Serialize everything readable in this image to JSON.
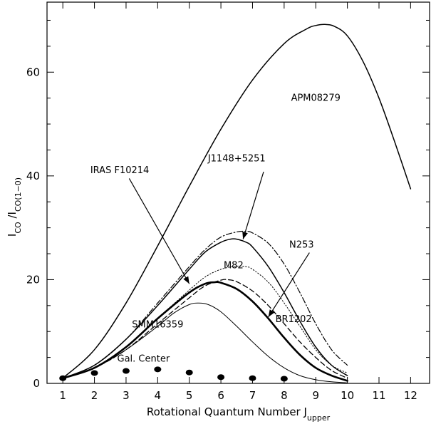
{
  "chart_data": {
    "type": "line",
    "xlabel": "Rotational Quantum Number J",
    "xlabel_sub": "upper",
    "ylabel_parts": [
      {
        "text": "I",
        "sub": false
      },
      {
        "text": "CO",
        "sub": true
      },
      {
        "text": " /I",
        "sub": false
      },
      {
        "text": "CO(1−0)",
        "sub": true
      }
    ],
    "xlim": [
      0.5,
      12.6
    ],
    "ylim": [
      0,
      73.5
    ],
    "xticks": [
      1,
      2,
      3,
      4,
      5,
      6,
      7,
      8,
      9,
      10,
      11,
      12
    ],
    "xtick_labels": [
      "1",
      "2",
      "3",
      "4",
      "5",
      "6",
      "7",
      "8",
      "9",
      "10",
      "11",
      "12"
    ],
    "yticks": [
      0,
      20,
      40,
      60
    ],
    "ytick_labels": [
      "0",
      "20",
      "40",
      "60"
    ],
    "y_minor_step": 5,
    "series": [
      {
        "name": "APM08279",
        "style": "solid",
        "width": 1.5,
        "x": [
          1,
          2,
          3,
          4,
          5,
          6,
          7,
          8,
          8.7,
          9,
          9.3,
          9.6,
          10,
          10.5,
          11,
          11.5,
          12
        ],
        "y": [
          1,
          6.5,
          15.5,
          26.5,
          38,
          49,
          58.5,
          65.5,
          68.3,
          69,
          69.2,
          68.8,
          67,
          62,
          55,
          46.5,
          37.5
        ]
      },
      {
        "name": "J1148+5251",
        "style": "dashdot",
        "width": 1.2,
        "x": [
          1,
          2,
          3,
          4,
          5,
          5.5,
          6,
          6.5,
          6.8,
          7,
          7.5,
          8,
          8.5,
          9,
          9.5,
          10
        ],
        "y": [
          1,
          3.5,
          8.5,
          15.5,
          22.5,
          25.8,
          28.2,
          29.2,
          29.3,
          29,
          27,
          23,
          17.5,
          11.5,
          6.5,
          3.5
        ]
      },
      {
        "name": "",
        "style": "solid",
        "width": 1.5,
        "x": [
          1,
          2,
          3,
          4,
          5,
          5.5,
          6,
          6.3,
          6.5,
          6.8,
          7,
          7.5,
          8,
          8.5,
          9,
          9.5,
          10
        ],
        "y": [
          1,
          3.5,
          8.5,
          15,
          22,
          25.3,
          27.2,
          27.8,
          27.8,
          27.2,
          26.3,
          22.5,
          17.5,
          12,
          7,
          3.5,
          1.5
        ]
      },
      {
        "name": "M82",
        "style": "dotted",
        "width": 1.0,
        "x": [
          1,
          2,
          3,
          4,
          5,
          5.5,
          6,
          6.5,
          6.8,
          7,
          7.5,
          8,
          8.5,
          9,
          9.5,
          10
        ],
        "y": [
          1,
          3,
          7,
          12.5,
          18,
          20.5,
          22,
          22.6,
          22.5,
          22,
          19.5,
          15.5,
          11,
          6.5,
          3.5,
          2
        ]
      },
      {
        "name": "IRAS F10214",
        "style": "solid",
        "width": 2.6,
        "x": [
          1,
          2,
          3,
          4,
          5,
          5.5,
          5.8,
          6,
          6.5,
          7,
          7.5,
          8,
          8.5,
          9,
          9.5,
          10
        ],
        "y": [
          1,
          3,
          7,
          12.5,
          17.5,
          19.2,
          19.5,
          19.4,
          18.2,
          15.8,
          12.5,
          8.8,
          5.5,
          3,
          1.5,
          0.5
        ]
      },
      {
        "name": "N253",
        "style": "dashed",
        "width": 1.3,
        "x": [
          1,
          2,
          3,
          4,
          5,
          5.5,
          6,
          6.2,
          6.5,
          7,
          7.5,
          8,
          8.5,
          9,
          9.5,
          10
        ],
        "y": [
          1,
          3,
          6.5,
          11.5,
          16.5,
          18.8,
          19.9,
          20,
          19.6,
          17.8,
          15,
          11.5,
          8,
          5,
          2.5,
          1
        ]
      },
      {
        "name": "SMM16359",
        "style": "solid",
        "width": 1.0,
        "x": [
          1,
          2,
          3,
          4,
          4.5,
          5,
          5.3,
          5.6,
          6,
          6.5,
          7,
          7.5,
          8,
          8.5,
          9,
          9.5,
          10
        ],
        "y": [
          1,
          3,
          6.5,
          11,
          13.5,
          15.2,
          15.5,
          15.2,
          13.8,
          11,
          8,
          5.2,
          3,
          1.5,
          0.7,
          0.3,
          0.1
        ]
      },
      {
        "name": "Gal. Center",
        "style": "points",
        "marker": "ellipse",
        "x": [
          1,
          2,
          3,
          4,
          5,
          6,
          7,
          8
        ],
        "y": [
          1,
          2,
          2.4,
          2.7,
          2.1,
          1.2,
          1,
          0.9
        ]
      }
    ],
    "labels": [
      {
        "text": "APM08279",
        "x": 9.0,
        "y": 54.5,
        "size": 17
      },
      {
        "text": "J1148+5251",
        "x": 6.5,
        "y": 42.8,
        "size": 13
      },
      {
        "text": "IRAS F10214",
        "x": 2.8,
        "y": 40.5,
        "size": 13
      },
      {
        "text": "N253",
        "x": 8.55,
        "y": 26.2,
        "size": 13
      },
      {
        "text": "M82",
        "x": 6.4,
        "y": 22.2,
        "size": 13
      },
      {
        "text": "BR1202",
        "x": 8.3,
        "y": 11.8,
        "size": 13
      },
      {
        "text": "SMM16359",
        "x": 4.0,
        "y": 10.8,
        "size": 13
      },
      {
        "text": "Gal. Center",
        "x": 3.55,
        "y": 4.2,
        "size": 13
      }
    ],
    "arrows": [
      {
        "from": [
          3.1,
          39.5
        ],
        "to": [
          5.0,
          19.2
        ]
      },
      {
        "from": [
          7.35,
          40.8
        ],
        "to": [
          6.7,
          27.8
        ]
      },
      {
        "from": [
          8.8,
          25.2
        ],
        "to": [
          7.5,
          12.8
        ]
      }
    ],
    "grid": false,
    "legend": "none"
  }
}
